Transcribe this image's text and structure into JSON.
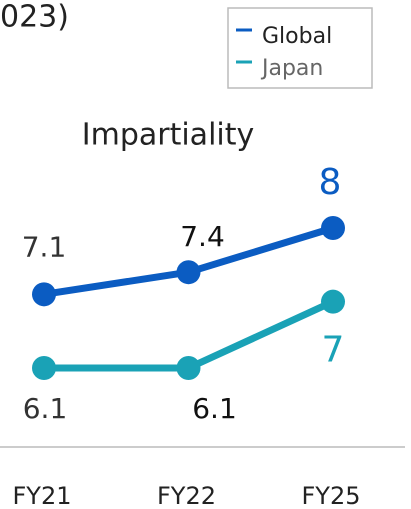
{
  "chart_data": {
    "type": "line",
    "subtitle": "023)",
    "title": "Impartiality",
    "categories": [
      "FY21",
      "FY22",
      "FY25"
    ],
    "series": [
      {
        "name": "Global",
        "color": "#0b5cc2",
        "values": [
          7.1,
          7.4,
          8
        ]
      },
      {
        "name": "Japan",
        "color": "#1aa2b6",
        "values": [
          6.1,
          6.1,
          7
        ]
      }
    ],
    "legend": "upper right"
  }
}
